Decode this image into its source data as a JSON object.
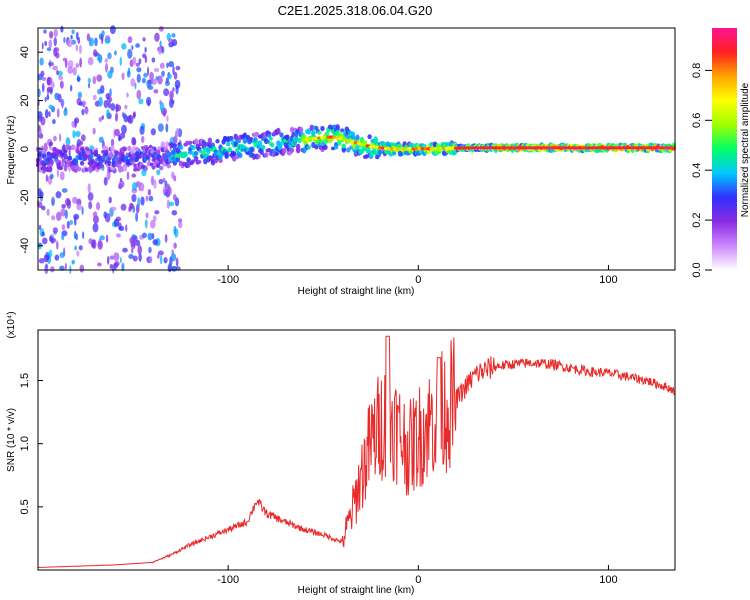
{
  "figure": {
    "title": "C2E1.2025.318.06.04.G20",
    "colors": {
      "snr_line": "#e82a2a",
      "axis": "#000000",
      "background": "#ffffff"
    }
  },
  "chart_data": [
    {
      "type": "heatmap",
      "name": "spectrogram",
      "xlabel": "Height of straight line (km)",
      "ylabel": "Frequency (Hz)",
      "xlim": [
        -200,
        135
      ],
      "ylim": [
        -50,
        50
      ],
      "x_ticks": [
        "-100",
        "0",
        "100"
      ],
      "y_ticks": [
        "-40",
        "-20",
        "0",
        "20",
        "40"
      ],
      "colorbar": {
        "label": "Normalized spectral amplitude",
        "range": [
          0,
          0.97
        ],
        "ticks": [
          "0.0",
          "0.2",
          "0.4",
          "0.6",
          "0.8"
        ],
        "colormap": [
          "#ffffff",
          "#cc88ff",
          "#8a2be2",
          "#3030ff",
          "#00c8ff",
          "#00ff66",
          "#a0ff00",
          "#ffff00",
          "#ffa500",
          "#ff2020",
          "#ff1493"
        ]
      },
      "ridge_frequency_hz": [
        [
          -200,
          -4
        ],
        [
          -150,
          -4
        ],
        [
          -120,
          -2
        ],
        [
          -100,
          0
        ],
        [
          -80,
          2
        ],
        [
          -60,
          4
        ],
        [
          -45,
          5
        ],
        [
          -35,
          3
        ],
        [
          -25,
          1
        ],
        [
          -15,
          0
        ],
        [
          0,
          0
        ],
        [
          30,
          0.5
        ],
        [
          80,
          0.5
        ],
        [
          135,
          0.5
        ]
      ]
    },
    {
      "type": "line",
      "name": "snr",
      "xlabel": "Height of straight line (km)",
      "ylabel": "SNR (10 * v/v)",
      "y_scale_label": "(x10⁴)",
      "xlim": [
        -200,
        135
      ],
      "ylim": [
        0,
        1.9
      ],
      "x_ticks": [
        "-100",
        "0",
        "100"
      ],
      "y_ticks": [
        "0.5",
        "1.0",
        "1.5"
      ],
      "series": [
        {
          "name": "SNR",
          "color": "#e82a2a",
          "points": [
            [
              -200,
              0.02
            ],
            [
              -180,
              0.03
            ],
            [
              -160,
              0.04
            ],
            [
              -140,
              0.06
            ],
            [
              -130,
              0.12
            ],
            [
              -120,
              0.2
            ],
            [
              -110,
              0.26
            ],
            [
              -100,
              0.32
            ],
            [
              -90,
              0.38
            ],
            [
              -85,
              0.55
            ],
            [
              -80,
              0.45
            ],
            [
              -70,
              0.38
            ],
            [
              -60,
              0.32
            ],
            [
              -50,
              0.28
            ],
            [
              -45,
              0.25
            ],
            [
              -40,
              0.22
            ],
            [
              -35,
              0.45
            ],
            [
              -30,
              0.75
            ],
            [
              -25,
              1.0
            ],
            [
              -20,
              1.15
            ],
            [
              -15,
              1.22
            ],
            [
              -10,
              1.08
            ],
            [
              -5,
              0.95
            ],
            [
              0,
              1.05
            ],
            [
              5,
              1.15
            ],
            [
              10,
              1.22
            ],
            [
              15,
              1.28
            ],
            [
              20,
              1.35
            ],
            [
              25,
              1.45
            ],
            [
              30,
              1.55
            ],
            [
              40,
              1.61
            ],
            [
              50,
              1.63
            ],
            [
              60,
              1.64
            ],
            [
              70,
              1.63
            ],
            [
              80,
              1.6
            ],
            [
              90,
              1.57
            ],
            [
              100,
              1.56
            ],
            [
              110,
              1.53
            ],
            [
              120,
              1.5
            ],
            [
              130,
              1.45
            ],
            [
              135,
              1.42
            ]
          ]
        }
      ]
    }
  ]
}
